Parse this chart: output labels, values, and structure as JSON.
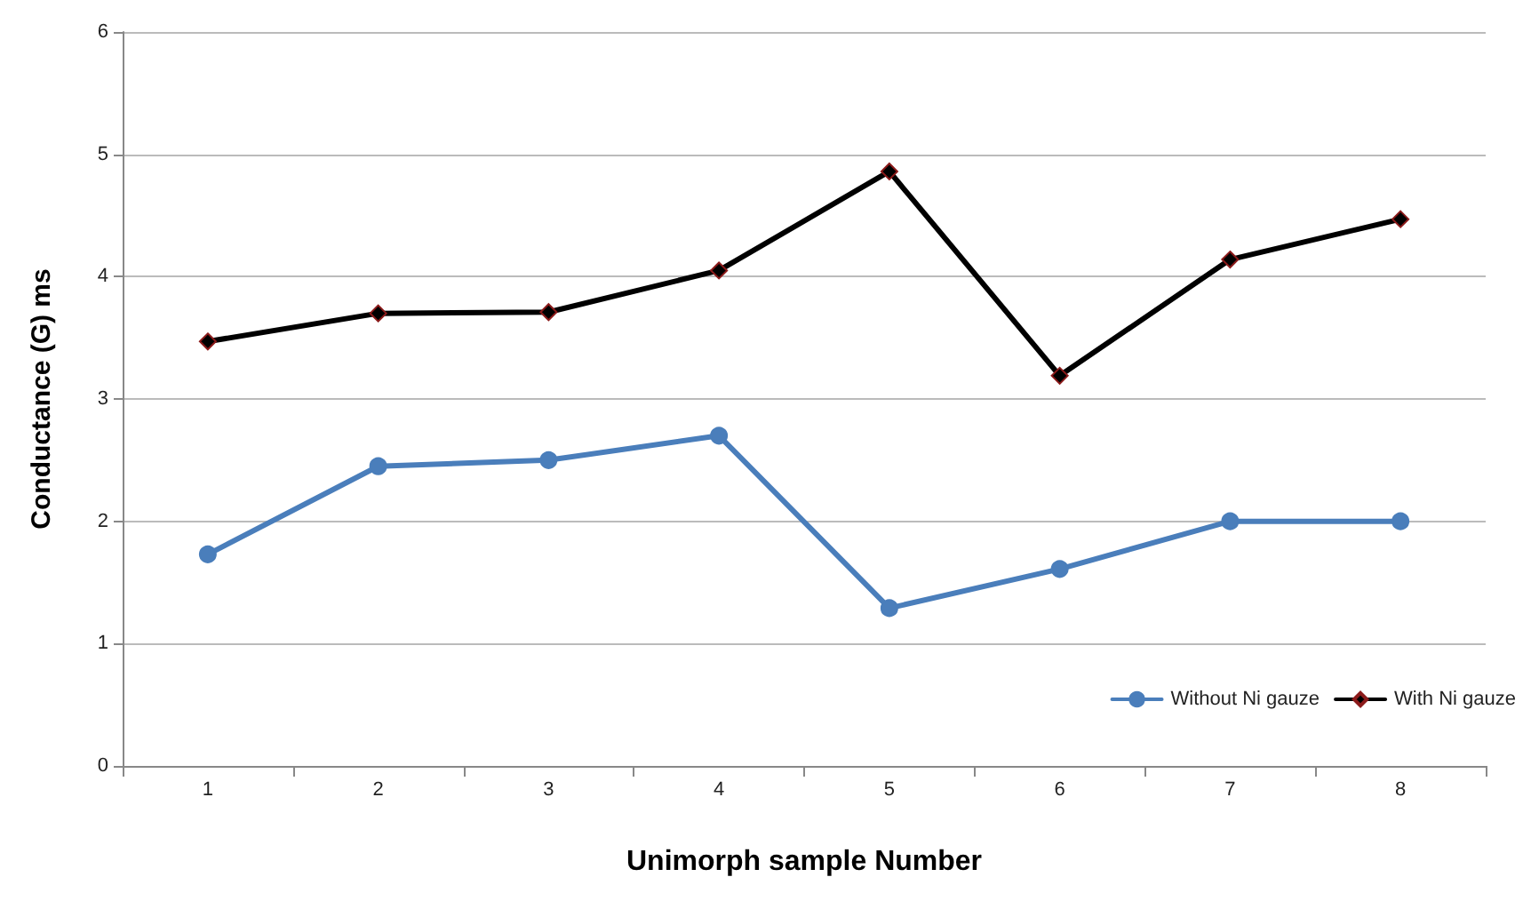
{
  "chart_data": {
    "type": "line",
    "xlabel": "Unimorph sample Number",
    "ylabel": "Conductance (G) ms",
    "categories": [
      "1",
      "2",
      "3",
      "4",
      "5",
      "6",
      "7",
      "8"
    ],
    "series": [
      {
        "name": "Without Ni gauze",
        "color": "#4a7ebb",
        "marker": "circle",
        "values": [
          1.73,
          2.45,
          2.5,
          2.7,
          1.29,
          1.61,
          2.0,
          2.0
        ]
      },
      {
        "name": "With Ni gauze",
        "color": "#000000",
        "marker": "diamond",
        "values": [
          3.47,
          3.7,
          3.71,
          4.05,
          4.86,
          3.19,
          4.14,
          4.47
        ]
      }
    ],
    "ylim": [
      0,
      6
    ],
    "yticks": [
      0,
      1,
      2,
      3,
      4,
      5,
      6
    ],
    "grid": "y",
    "legend": "bottom right",
    "line_style": "solid"
  }
}
